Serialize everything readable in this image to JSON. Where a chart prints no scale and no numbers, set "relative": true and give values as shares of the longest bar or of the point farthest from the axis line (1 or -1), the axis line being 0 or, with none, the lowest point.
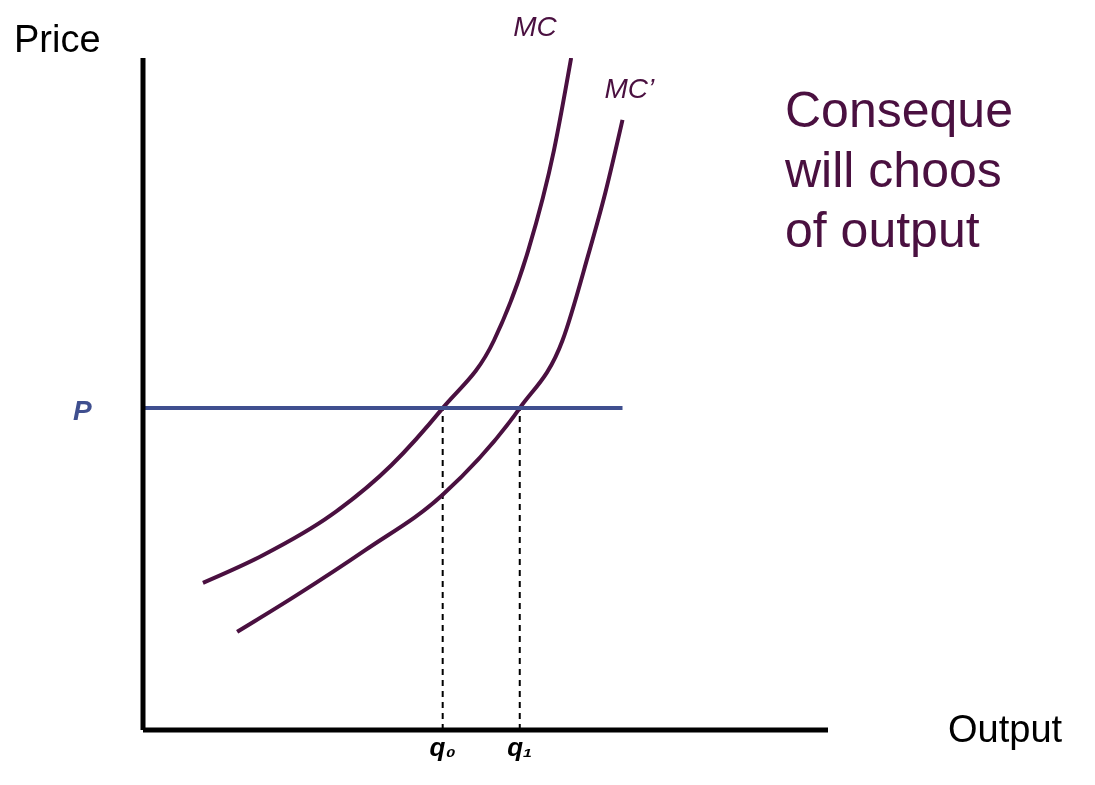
{
  "chart_data": {
    "type": "line",
    "relative": true,
    "xlabel": "Output",
    "ylabel": "Price",
    "annotations": [
      "Conseque\nwill choos\nof output"
    ],
    "categories": [
      null,
      null,
      null,
      null,
      null,
      null,
      null,
      null,
      null,
      null,
      null,
      null,
      null,
      null,
      null,
      null,
      null,
      null,
      null,
      null,
      null,
      null,
      null,
      null,
      null,
      null,
      null,
      null,
      null,
      null,
      null,
      null,
      null,
      null,
      null,
      "q₀",
      null,
      null,
      null,
      null,
      null,
      null,
      null,
      null,
      "q₁",
      null,
      null,
      null,
      null,
      null,
      null,
      null,
      null,
      null,
      null,
      null,
      null,
      null,
      null,
      null,
      null,
      null,
      null,
      null,
      null,
      null,
      null,
      null,
      null,
      null,
      null,
      null,
      null,
      null,
      null,
      null,
      null,
      null,
      null,
      null,
      null
    ],
    "tick_labels": "x",
    "marker": "none",
    "line_style": "solid",
    "grid": false,
    "legend": false,
    "ref_lines": [
      {
        "axis": "x",
        "value": "q₀",
        "color": "#000000",
        "line_style": "dashed"
      },
      {
        "axis": "x",
        "value": "q₁",
        "color": "#000000",
        "line_style": "dashed"
      }
    ],
    "series": [
      {
        "name": "MC",
        "color": "#4a1040",
        "values": [
          null,
          null,
          null,
          null,
          null,
          null,
          null,
          0.219,
          null,
          null,
          null,
          null,
          null,
          null,
          0.26,
          null,
          null,
          null,
          null,
          null,
          null,
          null,
          0.32,
          null,
          null,
          null,
          null,
          null,
          null,
          0.394,
          null,
          null,
          null,
          null,
          null,
          0.479,
          null,
          null,
          null,
          null,
          null,
          0.58,
          null,
          null,
          null,
          0.714,
          null,
          null,
          0.863,
          null,
          1,
          null,
          null,
          null,
          null,
          null,
          null,
          null,
          null,
          null,
          null,
          null,
          null,
          null,
          null,
          null,
          null,
          null,
          null,
          null,
          null,
          null,
          null,
          null,
          null,
          null,
          null,
          null,
          null,
          null,
          null
        ]
      },
      {
        "name": "MC’",
        "color": "#4a1040",
        "values": [
          null,
          null,
          null,
          null,
          null,
          null,
          null,
          null,
          null,
          null,
          null,
          0.146,
          null,
          null,
          null,
          null,
          null,
          null,
          0.201,
          null,
          null,
          null,
          null,
          null,
          null,
          null,
          0.268,
          null,
          null,
          null,
          null,
          null,
          null,
          null,
          null,
          0.35,
          null,
          null,
          null,
          null,
          null,
          null,
          null,
          null,
          0.479,
          null,
          null,
          null,
          null,
          0.58,
          null,
          null,
          0.707,
          null,
          0.8,
          null,
          0.908,
          null,
          null,
          null,
          null,
          null,
          null,
          null,
          null,
          null,
          null,
          null,
          null,
          null,
          null,
          null,
          null,
          null,
          null,
          null,
          null,
          null,
          null,
          null,
          null
        ]
      },
      {
        "name": "P",
        "color": "#3f4f8f",
        "values": [
          0.479,
          null,
          null,
          null,
          null,
          null,
          null,
          null,
          null,
          null,
          null,
          null,
          null,
          null,
          null,
          null,
          null,
          null,
          null,
          null,
          null,
          null,
          null,
          null,
          null,
          null,
          null,
          null,
          null,
          null,
          null,
          null,
          null,
          null,
          null,
          0.479,
          null,
          null,
          null,
          null,
          null,
          null,
          null,
          null,
          0.479,
          null,
          null,
          null,
          null,
          null,
          null,
          null,
          null,
          null,
          null,
          null,
          0.479,
          null,
          null,
          null,
          null,
          null,
          null,
          null,
          null,
          null,
          null,
          null,
          null,
          null,
          null,
          null,
          null,
          null,
          null,
          null,
          null,
          null,
          null,
          null,
          null
        ]
      }
    ]
  }
}
